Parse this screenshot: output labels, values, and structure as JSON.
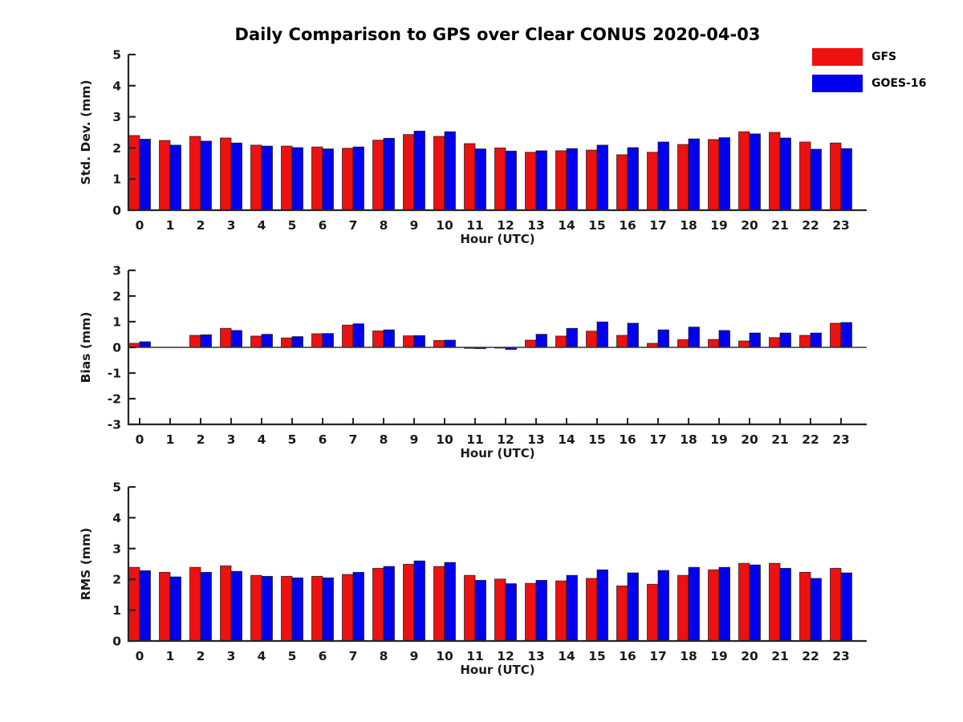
{
  "legend": {
    "position": "top-right",
    "entries": [
      {
        "label": "GFS",
        "color": "#ee1111"
      },
      {
        "label": "GOES-16",
        "color": "#0000ee"
      }
    ]
  },
  "axis_color": "#262626",
  "chart_data": [
    {
      "type": "bar",
      "title": "Daily Comparison to GPS over Clear CONUS 2020-04-03",
      "ylabel": "Std. Dev. (mm)",
      "xlabel": "Hour (UTC)",
      "categories": [
        0,
        1,
        2,
        3,
        4,
        5,
        6,
        7,
        8,
        9,
        10,
        11,
        12,
        13,
        14,
        15,
        16,
        17,
        18,
        19,
        20,
        21,
        22,
        23
      ],
      "series": [
        {
          "name": "GFS",
          "color": "#ee1111",
          "values": [
            2.4,
            2.24,
            2.37,
            2.32,
            2.09,
            2.06,
            2.03,
            1.99,
            2.25,
            2.43,
            2.37,
            2.14,
            2.0,
            1.86,
            1.91,
            1.93,
            1.78,
            1.86,
            2.11,
            2.27,
            2.52,
            2.5,
            2.19,
            2.16
          ]
        },
        {
          "name": "GOES-16",
          "color": "#0000ee",
          "values": [
            2.28,
            2.09,
            2.22,
            2.16,
            2.06,
            2.01,
            1.97,
            2.03,
            2.31,
            2.54,
            2.52,
            1.97,
            1.9,
            1.91,
            1.98,
            2.09,
            2.01,
            2.19,
            2.29,
            2.33,
            2.45,
            2.32,
            1.96,
            1.98
          ]
        }
      ],
      "ylim": [
        0,
        5
      ],
      "yticks": [
        0,
        1,
        2,
        3,
        4,
        5
      ],
      "grid": false,
      "legend_position": "top-right"
    },
    {
      "type": "bar",
      "title": "",
      "ylabel": "Bias (mm)",
      "xlabel": "Hour (UTC)",
      "categories": [
        0,
        1,
        2,
        3,
        4,
        5,
        6,
        7,
        8,
        9,
        10,
        11,
        12,
        13,
        14,
        15,
        16,
        17,
        18,
        19,
        20,
        21,
        22,
        23
      ],
      "series": [
        {
          "name": "GFS",
          "color": "#ee1111",
          "values": [
            0.16,
            0.0,
            0.47,
            0.74,
            0.44,
            0.37,
            0.53,
            0.87,
            0.64,
            0.45,
            0.27,
            -0.04,
            -0.03,
            0.28,
            0.44,
            0.63,
            0.47,
            0.16,
            0.3,
            0.31,
            0.25,
            0.38,
            0.47,
            0.94
          ]
        },
        {
          "name": "GOES-16",
          "color": "#0000ee",
          "values": [
            0.22,
            0.0,
            0.49,
            0.66,
            0.51,
            0.42,
            0.54,
            0.92,
            0.68,
            0.46,
            0.28,
            -0.05,
            -0.08,
            0.51,
            0.74,
            0.99,
            0.94,
            0.68,
            0.79,
            0.66,
            0.56,
            0.56,
            0.56,
            0.97
          ]
        }
      ],
      "ylim": [
        -3,
        3
      ],
      "yticks": [
        -3,
        -2,
        -1,
        0,
        1,
        2,
        3
      ],
      "grid": false,
      "zero_line": true
    },
    {
      "type": "bar",
      "title": "",
      "ylabel": "RMS (mm)",
      "xlabel": "Hour (UTC)",
      "categories": [
        0,
        1,
        2,
        3,
        4,
        5,
        6,
        7,
        8,
        9,
        10,
        11,
        12,
        13,
        14,
        15,
        16,
        17,
        18,
        19,
        20,
        21,
        22,
        23
      ],
      "series": [
        {
          "name": "GFS",
          "color": "#ee1111",
          "values": [
            2.39,
            2.23,
            2.39,
            2.44,
            2.13,
            2.1,
            2.1,
            2.16,
            2.36,
            2.49,
            2.42,
            2.13,
            2.01,
            1.87,
            1.95,
            2.03,
            1.79,
            1.84,
            2.13,
            2.31,
            2.52,
            2.52,
            2.23,
            2.36
          ]
        },
        {
          "name": "GOES-16",
          "color": "#0000ee",
          "values": [
            2.28,
            2.08,
            2.23,
            2.26,
            2.1,
            2.05,
            2.05,
            2.23,
            2.42,
            2.6,
            2.55,
            1.97,
            1.86,
            1.97,
            2.13,
            2.31,
            2.21,
            2.29,
            2.39,
            2.39,
            2.47,
            2.36,
            2.03,
            2.21
          ]
        }
      ],
      "ylim": [
        0,
        5
      ],
      "yticks": [
        0,
        1,
        2,
        3,
        4,
        5
      ],
      "grid": false
    }
  ]
}
